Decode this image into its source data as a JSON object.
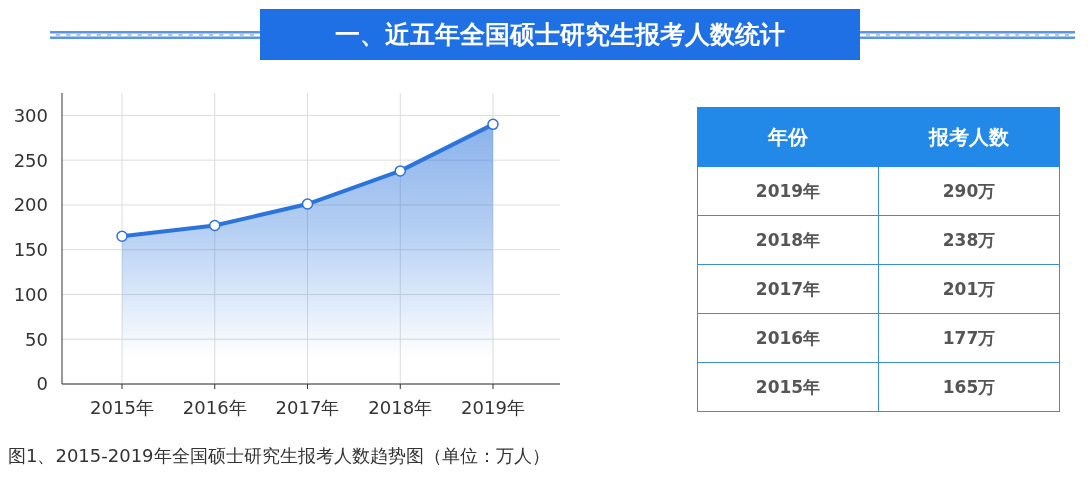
{
  "chart_data": [
    {
      "type": "area",
      "title": "一、近五年全国硕士研究生报考人数统计",
      "annotations": [
        "图1、2015-2019年全国硕士研究生报考人数趋势图（单位：万人）"
      ],
      "categories": [
        "2015年",
        "2016年",
        "2017年",
        "2018年",
        "2019年"
      ],
      "values": [
        165,
        177,
        201,
        238,
        290
      ],
      "color": "#2a74db",
      "ylim": [
        0,
        325
      ],
      "yticks": [
        0,
        50,
        100,
        150,
        200,
        250,
        300
      ],
      "grid": true,
      "marker": "circle",
      "line_style": "solid"
    },
    {
      "type": "heatmap",
      "ylabel": "年份",
      "categories": [
        "报考人数"
      ],
      "y_categories": [
        "2019年",
        "2018年",
        "2017年",
        "2016年",
        "2015年"
      ],
      "cells": [
        [
          290
        ],
        [
          238
        ],
        [
          201
        ],
        [
          177
        ],
        [
          165
        ]
      ],
      "cell_labels": [
        [
          "290万"
        ],
        [
          "238万"
        ],
        [
          "201万"
        ],
        [
          "177万"
        ],
        [
          "165万"
        ]
      ]
    }
  ]
}
